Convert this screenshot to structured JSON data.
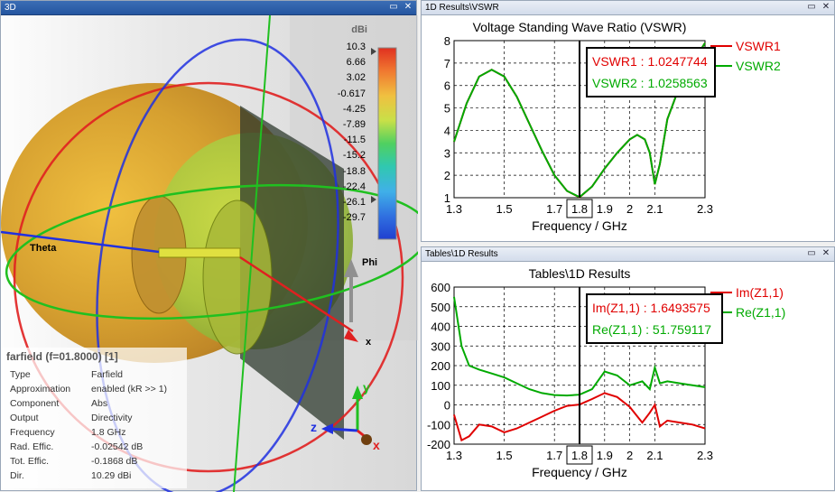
{
  "panel3d": {
    "title": "3D",
    "colorbar": {
      "unit": "dBi",
      "labels": [
        "10.3",
        "6.66",
        "3.02",
        "-0.617",
        "-4.25",
        "-7.89",
        "-11.5",
        "-15.2",
        "-18.8",
        "-22.4",
        "-26.1",
        "-29.7"
      ]
    },
    "axis_labels": {
      "theta": "Theta",
      "phi": "Phi",
      "x": "x",
      "y": "y",
      "z": "z",
      "x2": "x",
      "z2": "z"
    },
    "info": {
      "title": "farfield (f=01.8000) [1]",
      "rows": [
        {
          "key": "Type",
          "value": "Farfield"
        },
        {
          "key": "Approximation",
          "value": "enabled (kR >> 1)"
        },
        {
          "key": "Component",
          "value": "Abs"
        },
        {
          "key": "Output",
          "value": "Directivity"
        },
        {
          "key": "Frequency",
          "value": "1.8 GHz"
        },
        {
          "key": "Rad. Effic.",
          "value": "-0.02542 dB"
        },
        {
          "key": "Tot. Effic.",
          "value": "-0.1868 dB"
        },
        {
          "key": "Dir.",
          "value": "10.29 dBi"
        }
      ]
    }
  },
  "window_buttons": {
    "restore": "▭",
    "close": "✕"
  },
  "vswr_panel": {
    "title": "1D Results\\VSWR",
    "marker_label": "1.8",
    "readouts": [
      {
        "text": "VSWR1 : 1.0247744",
        "color": "#e00000"
      },
      {
        "text": "VSWR2 : 1.0258563",
        "color": "#00aa00"
      }
    ]
  },
  "table_panel": {
    "title": "Tables\\1D Results",
    "marker_label": "1.8",
    "readouts": [
      {
        "text": "Im(Z1,1) : 1.6493575",
        "color": "#e00000"
      },
      {
        "text": "Re(Z1,1) : 51.759117",
        "color": "#00aa00"
      }
    ]
  },
  "chart_data": [
    {
      "type": "line",
      "title": "Voltage Standing Wave Ratio (VSWR)",
      "xlabel": "Frequency / GHz",
      "ylabel": "",
      "xlim": [
        1.3,
        2.3
      ],
      "ylim": [
        1,
        8
      ],
      "xticks": [
        "1.3",
        "1.5",
        "1.7",
        "1.9",
        "2",
        "2.1",
        "2.3"
      ],
      "yticks": [
        "1",
        "2",
        "3",
        "4",
        "5",
        "6",
        "7",
        "8"
      ],
      "grid": true,
      "legend": "right",
      "marker_x": 1.8,
      "series": [
        {
          "name": "VSWR1",
          "color": "#e00000",
          "x": [
            1.3,
            1.35,
            1.4,
            1.45,
            1.5,
            1.55,
            1.6,
            1.65,
            1.7,
            1.75,
            1.8,
            1.85,
            1.9,
            1.95,
            2.0,
            2.03,
            2.06,
            2.08,
            2.1,
            2.12,
            2.15,
            2.2,
            2.25,
            2.3
          ],
          "y": [
            3.5,
            5.2,
            6.4,
            6.7,
            6.4,
            5.5,
            4.3,
            3.1,
            2.0,
            1.3,
            1.02,
            1.5,
            2.3,
            3.0,
            3.6,
            3.8,
            3.6,
            3.0,
            1.6,
            2.5,
            4.5,
            6.0,
            7.0,
            7.9
          ]
        },
        {
          "name": "VSWR2",
          "color": "#00aa00",
          "x": [
            1.3,
            1.35,
            1.4,
            1.45,
            1.5,
            1.55,
            1.6,
            1.65,
            1.7,
            1.75,
            1.8,
            1.85,
            1.9,
            1.95,
            2.0,
            2.03,
            2.06,
            2.08,
            2.1,
            2.12,
            2.15,
            2.2,
            2.25,
            2.3
          ],
          "y": [
            3.5,
            5.2,
            6.4,
            6.7,
            6.4,
            5.5,
            4.3,
            3.1,
            2.0,
            1.3,
            1.03,
            1.5,
            2.3,
            3.0,
            3.6,
            3.8,
            3.6,
            3.0,
            1.6,
            2.5,
            4.5,
            6.0,
            7.0,
            7.9
          ]
        }
      ]
    },
    {
      "type": "line",
      "title": "Tables\\1D Results",
      "xlabel": "Frequency / GHz",
      "ylabel": "",
      "xlim": [
        1.3,
        2.3
      ],
      "ylim": [
        -200,
        600
      ],
      "xticks": [
        "1.3",
        "1.5",
        "1.7",
        "1.9",
        "2",
        "2.1",
        "2.3"
      ],
      "yticks": [
        "-200",
        "-100",
        "0",
        "100",
        "200",
        "300",
        "400",
        "500",
        "600"
      ],
      "grid": true,
      "legend": "right",
      "marker_x": 1.8,
      "series": [
        {
          "name": "Im(Z1,1)",
          "color": "#e00000",
          "x": [
            1.3,
            1.33,
            1.36,
            1.4,
            1.45,
            1.5,
            1.55,
            1.6,
            1.65,
            1.7,
            1.75,
            1.8,
            1.85,
            1.9,
            1.95,
            2.0,
            2.05,
            2.08,
            2.1,
            2.12,
            2.15,
            2.2,
            2.25,
            2.3
          ],
          "y": [
            -50,
            -180,
            -160,
            -100,
            -110,
            -140,
            -120,
            -90,
            -60,
            -30,
            -5,
            2,
            30,
            60,
            40,
            -10,
            -90,
            -40,
            0,
            -110,
            -80,
            -90,
            -100,
            -120
          ]
        },
        {
          "name": "Re(Z1,1)",
          "color": "#00aa00",
          "x": [
            1.3,
            1.33,
            1.36,
            1.4,
            1.45,
            1.5,
            1.55,
            1.6,
            1.65,
            1.7,
            1.75,
            1.8,
            1.85,
            1.9,
            1.95,
            2.0,
            2.05,
            2.08,
            2.1,
            2.12,
            2.15,
            2.2,
            2.25,
            2.3
          ],
          "y": [
            550,
            300,
            200,
            180,
            160,
            140,
            110,
            80,
            60,
            50,
            48,
            52,
            80,
            170,
            150,
            100,
            120,
            80,
            190,
            110,
            120,
            110,
            100,
            90
          ]
        }
      ]
    }
  ]
}
